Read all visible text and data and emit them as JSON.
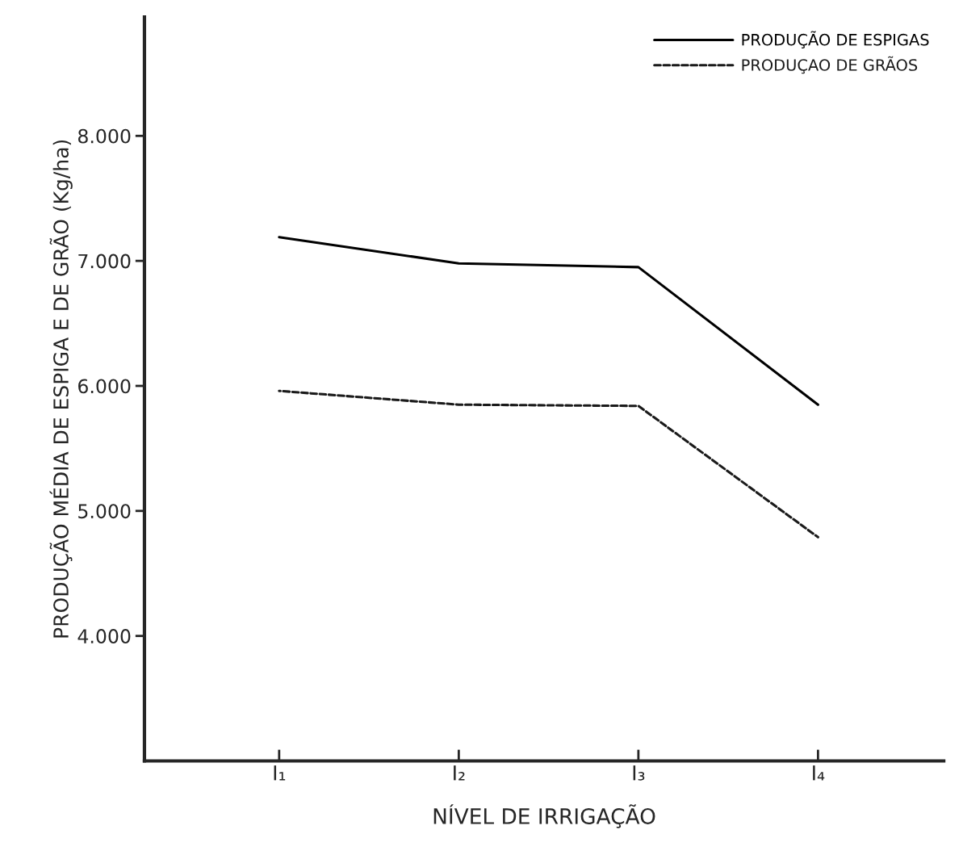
{
  "chart_data": {
    "type": "line",
    "xlabel": "NÍVEL DE IRRIGAÇÃO",
    "ylabel": "PRODUÇÃO MÉDIA DE ESPIGA E DE GRÃO (Kg/ha)",
    "categories": [
      "I₁",
      "I₂",
      "I₃",
      "I₄"
    ],
    "series": [
      {
        "name": "PRODUÇÃO DE ESPIGAS",
        "color": "#000000",
        "line_style": "solid",
        "values": [
          7190,
          6980,
          6950,
          5850
        ]
      },
      {
        "name": "PRODUÇAO DE GRÃOS",
        "color": "#1a1a1a",
        "line_style": "dashed",
        "values": [
          5960,
          5850,
          5840,
          4790
        ]
      }
    ],
    "ylim": [
      3000,
      8950
    ],
    "yticks": [
      {
        "value": 4000,
        "label": "4.000"
      },
      {
        "value": 5000,
        "label": "5.000"
      },
      {
        "value": 6000,
        "label": "6.000"
      },
      {
        "value": 7000,
        "label": "7.000"
      },
      {
        "value": 8000,
        "label": "8.000"
      }
    ],
    "grid": false,
    "legend": "top right",
    "marker": "none"
  }
}
